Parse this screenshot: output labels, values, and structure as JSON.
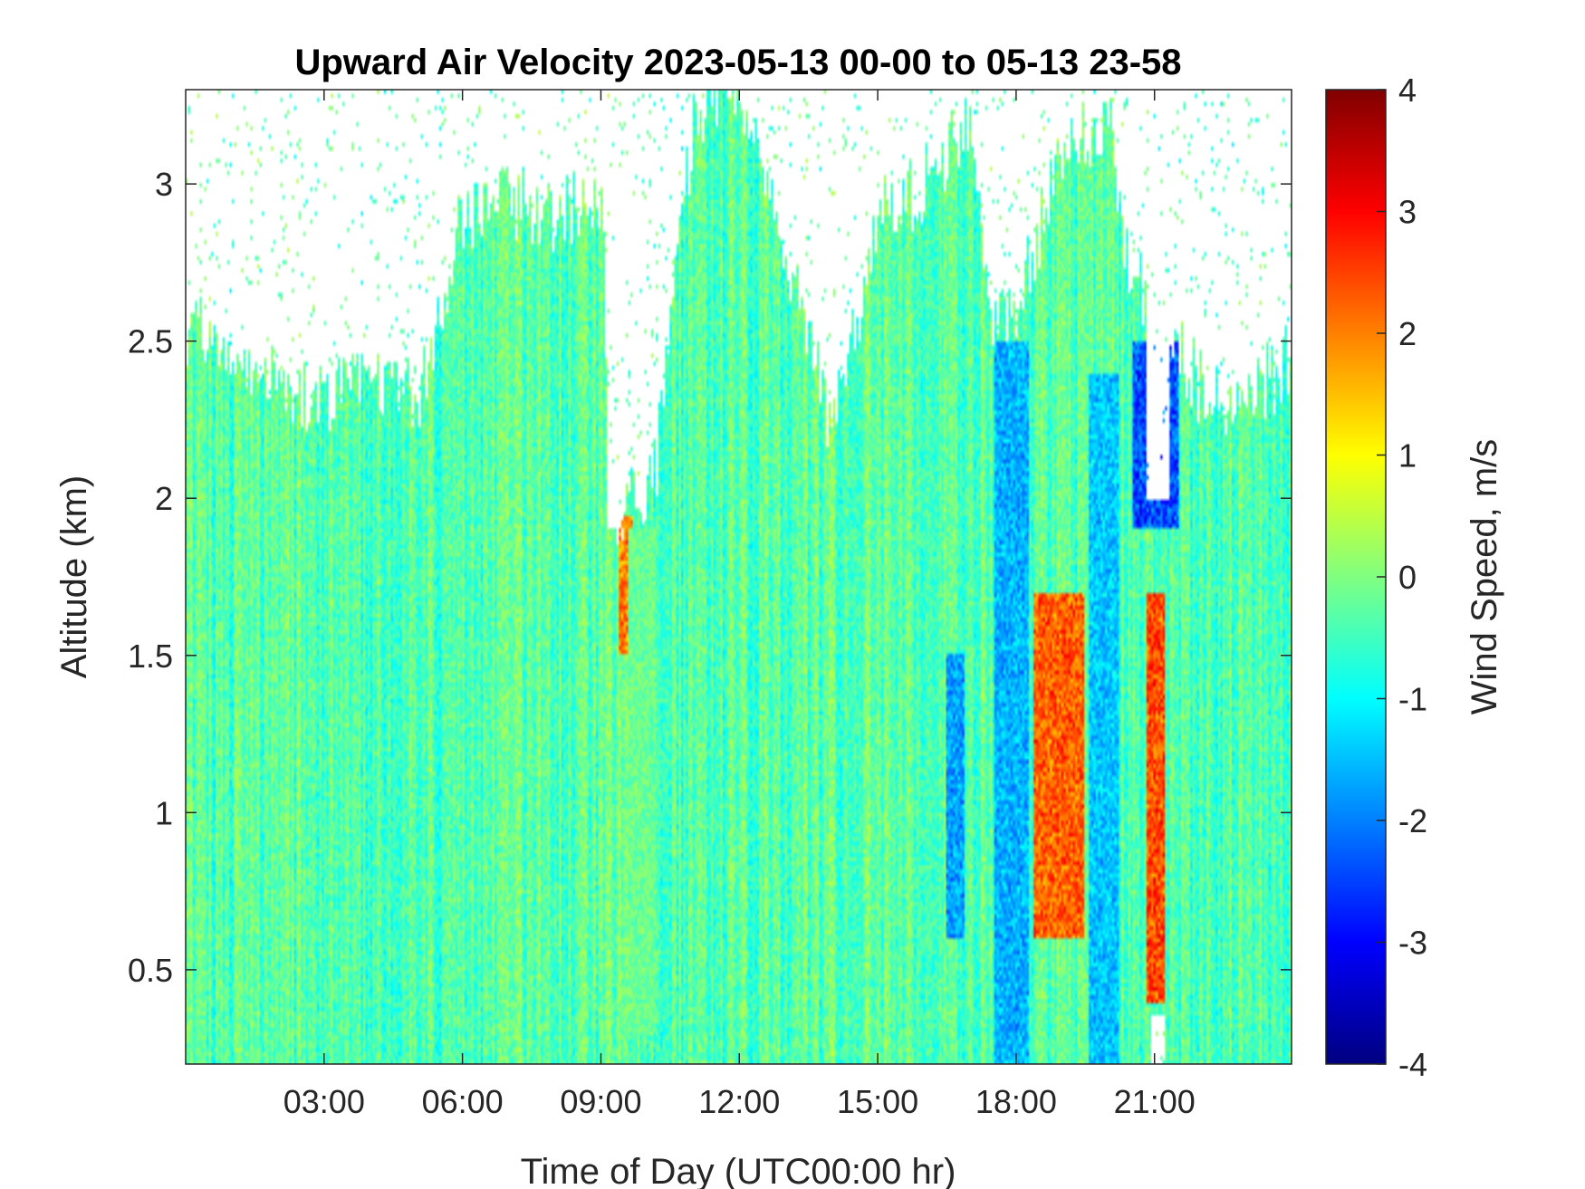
{
  "chart_data": {
    "type": "heatmap",
    "title": "Upward Air Velocity 2023-05-13 00-00 to 05-13 23-58",
    "xlabel": "Time of Day (UTC00:00 hr)",
    "ylabel": "Altitude (km)",
    "xlim_hours": [
      0.0,
      23.97
    ],
    "ylim_km": [
      0.2,
      3.3
    ],
    "x_ticks": [
      {
        "value": 3,
        "label": "03:00"
      },
      {
        "value": 6,
        "label": "06:00"
      },
      {
        "value": 9,
        "label": "09:00"
      },
      {
        "value": 12,
        "label": "12:00"
      },
      {
        "value": 15,
        "label": "15:00"
      },
      {
        "value": 18,
        "label": "18:00"
      },
      {
        "value": 21,
        "label": "21:00"
      }
    ],
    "y_ticks": [
      {
        "value": 0.5,
        "label": "0.5"
      },
      {
        "value": 1.0,
        "label": "1"
      },
      {
        "value": 1.5,
        "label": "1.5"
      },
      {
        "value": 2.0,
        "label": "2"
      },
      {
        "value": 2.5,
        "label": "2.5"
      },
      {
        "value": 3.0,
        "label": "3"
      }
    ],
    "grid": false,
    "colorbar": {
      "label": "Wind Speed, m/s",
      "colormap": "jet",
      "range": [
        -4,
        4
      ],
      "ticks": [
        {
          "value": 4,
          "label": "4"
        },
        {
          "value": 3,
          "label": "3"
        },
        {
          "value": 2,
          "label": "2"
        },
        {
          "value": 1,
          "label": "1"
        },
        {
          "value": 0,
          "label": "0"
        },
        {
          "value": -1,
          "label": "-1"
        },
        {
          "value": -2,
          "label": "-2"
        },
        {
          "value": -3,
          "label": "-3"
        },
        {
          "value": -4,
          "label": "-4"
        }
      ]
    },
    "data_top_altitude_km": {
      "hours": [
        0,
        1,
        2,
        3,
        4,
        5,
        6,
        7,
        8,
        9,
        9.3,
        10.2,
        11,
        12,
        13,
        14,
        15,
        16,
        17,
        17.5,
        18,
        19,
        20,
        20.5,
        21.3,
        22,
        23,
        23.97
      ],
      "km": [
        2.55,
        2.5,
        2.35,
        2.3,
        2.4,
        2.3,
        2.9,
        2.95,
        2.9,
        2.95,
        1.9,
        2.1,
        3.2,
        3.3,
        2.8,
        2.2,
        2.9,
        3.0,
        3.2,
        2.6,
        2.6,
        3.1,
        3.2,
        2.7,
        2.55,
        2.35,
        2.3,
        2.45
      ]
    },
    "gaps": [
      {
        "hours": [
          9.15,
          9.45
        ],
        "below_km": 3.3,
        "above_km": 1.9
      },
      {
        "hours": [
          9.45,
          10.05
        ],
        "below_km": 3.3,
        "above_km": 2.15
      },
      {
        "hours": [
          17.45,
          17.55
        ],
        "below_km": 3.3,
        "above_km": 2.6
      },
      {
        "hours": [
          20.8,
          21.3
        ],
        "below_km": 3.3,
        "above_km": 2.0
      },
      {
        "hours": [
          20.9,
          21.2
        ],
        "below_km": 0.35,
        "above_km": 0.2
      }
    ],
    "features": [
      {
        "hours": [
          9.4,
          9.7
        ],
        "km": [
          1.5,
          1.95
        ],
        "value": 2.5
      },
      {
        "hours": [
          9.6,
          10.2
        ],
        "km": [
          0.3,
          1.9
        ],
        "value": -0.2
      },
      {
        "hours": [
          17.55,
          18.3
        ],
        "km": [
          0.2,
          2.5
        ],
        "value": -2.0
      },
      {
        "hours": [
          18.4,
          19.5
        ],
        "km": [
          0.6,
          1.7
        ],
        "value": 2.8
      },
      {
        "hours": [
          19.6,
          20.2
        ],
        "km": [
          0.2,
          2.4
        ],
        "value": -1.8
      },
      {
        "hours": [
          20.8,
          21.2
        ],
        "km": [
          0.4,
          1.7
        ],
        "value": 3.0
      },
      {
        "hours": [
          20.5,
          21.5
        ],
        "km": [
          1.9,
          2.5
        ],
        "value": -3.0
      },
      {
        "hours": [
          16.5,
          16.9
        ],
        "km": [
          0.6,
          1.5
        ],
        "value": -2.2
      }
    ]
  }
}
